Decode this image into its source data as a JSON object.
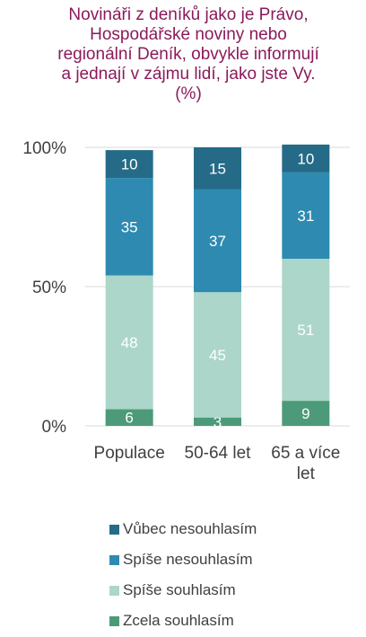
{
  "title": "Novináři z deníků jako je Právo,\nHospodářské noviny nebo\nregionální Deník, obvykle informují\na jednají v zájmu lidí, jako jste Vy.\n(%)",
  "chart_data": {
    "type": "bar",
    "stacked": true,
    "title": "Novináři z deníků jako je Právo, Hospodářské noviny nebo regionální Deník, obvykle informují a jednají v zájmu lidí, jako jste Vy. (%)",
    "categories": [
      "Populace",
      "50-64 let",
      "65 a více let"
    ],
    "series": [
      {
        "name": "Zcela souhlasím",
        "values": [
          6,
          3,
          9
        ],
        "color": "#4c9a79",
        "label_color": "#ffffff"
      },
      {
        "name": "Spíše souhlasím",
        "values": [
          48,
          45,
          51
        ],
        "color": "#acd6c9",
        "label_color": "#ffffff"
      },
      {
        "name": "Spíše nesouhlasím",
        "values": [
          35,
          37,
          31
        ],
        "color": "#2e8ab0",
        "label_color": "#ffffff"
      },
      {
        "name": "Vůbec nesouhlasím",
        "values": [
          10,
          15,
          10
        ],
        "color": "#256b87",
        "label_color": "#ffffff"
      }
    ],
    "ylim": [
      0,
      100
    ],
    "yticks": [
      "0%",
      "50%",
      "100%"
    ],
    "grid": true,
    "legend_position": "bottom",
    "legend_order": [
      "Vůbec nesouhlasím",
      "Spíše nesouhlasím",
      "Spíše souhlasím",
      "Zcela souhlasím"
    ]
  }
}
